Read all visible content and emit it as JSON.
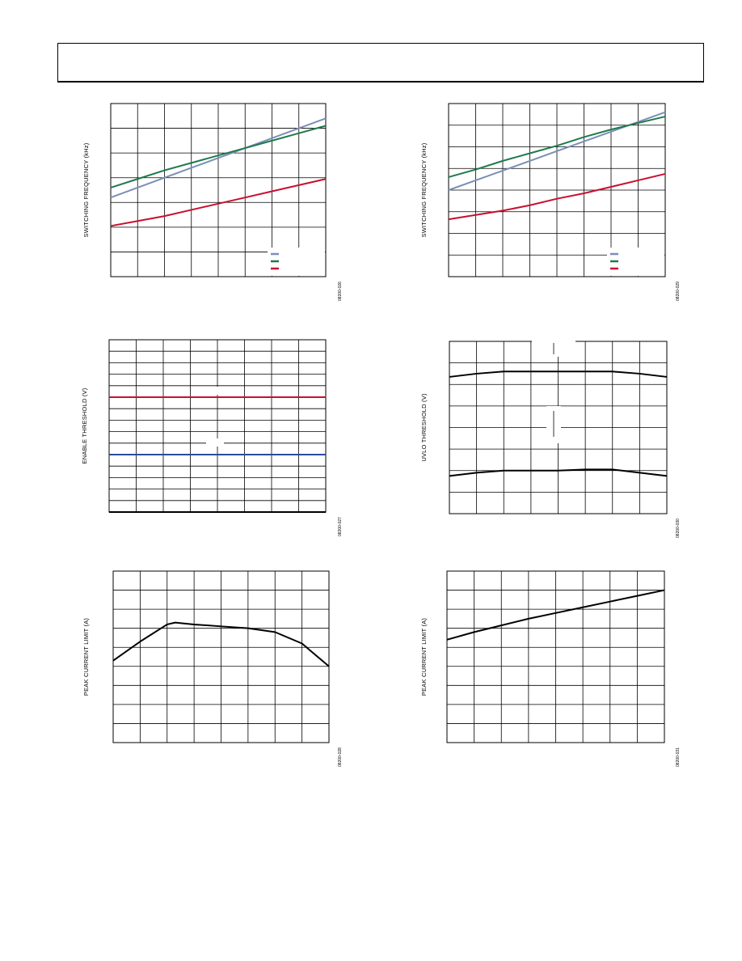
{
  "page": {
    "header": ""
  },
  "charts": [
    {
      "id": "c1",
      "ylabel": "SWITCHING FREQUENCY (kHz)",
      "fignum": "08200-026",
      "cols": 8,
      "rows": 7,
      "legend": true
    },
    {
      "id": "c2",
      "ylabel": "SWITCHING FREQUENCY (kHz)",
      "fignum": "08200-029",
      "cols": 8,
      "rows": 8,
      "legend": true
    },
    {
      "id": "c3",
      "ylabel": "ENABLE THRESHOLD (V)",
      "fignum": "08200-027",
      "cols": 8,
      "rows": 15,
      "legend": false
    },
    {
      "id": "c4",
      "ylabel": "UVLO THRESHOLD (V)",
      "fignum": "08200-030",
      "cols": 8,
      "rows": 8,
      "legend": false
    },
    {
      "id": "c5",
      "ylabel": "PEAK CURRENT LIMIT (A)",
      "fignum": "08200-028",
      "cols": 8,
      "rows": 9,
      "legend": false
    },
    {
      "id": "c6",
      "ylabel": "PEAK CURRENT LIMIT (A)",
      "fignum": "08200-031",
      "cols": 8,
      "rows": 9,
      "legend": false
    }
  ],
  "chart_data": [
    {
      "type": "line",
      "x": [
        0,
        1,
        2,
        3,
        4,
        5,
        6,
        7,
        8
      ],
      "xlim": [
        0,
        8
      ],
      "ylim": [
        0,
        7
      ],
      "xlabel": "",
      "ylabel": "SWITCHING FREQUENCY (kHz)",
      "title": "",
      "grid": true,
      "legend_location": "bottom-right",
      "series": [
        {
          "color": "#7b8fb6",
          "values": [
            3.2,
            3.6,
            4.0,
            4.4,
            4.8,
            5.2,
            5.6,
            6.0,
            6.4
          ]
        },
        {
          "color": "#1f7a4d",
          "values": [
            3.6,
            3.95,
            4.3,
            4.6,
            4.9,
            5.2,
            5.5,
            5.8,
            6.1
          ]
        },
        {
          "color": "#c8102e",
          "values": [
            2.05,
            2.25,
            2.45,
            2.7,
            2.95,
            3.2,
            3.45,
            3.7,
            3.95
          ]
        }
      ]
    },
    {
      "type": "line",
      "x": [
        0,
        1,
        2,
        3,
        4,
        5,
        6,
        7,
        8
      ],
      "xlim": [
        0,
        8
      ],
      "ylim": [
        0,
        8
      ],
      "xlabel": "",
      "ylabel": "SWITCHING FREQUENCY (kHz)",
      "title": "",
      "grid": true,
      "legend_location": "bottom-right",
      "series": [
        {
          "color": "#7b8fb6",
          "values": [
            4.0,
            4.45,
            4.9,
            5.35,
            5.8,
            6.25,
            6.7,
            7.15,
            7.6
          ]
        },
        {
          "color": "#1f7a4d",
          "values": [
            4.6,
            4.95,
            5.35,
            5.7,
            6.05,
            6.45,
            6.8,
            7.1,
            7.4
          ]
        },
        {
          "color": "#c8102e",
          "values": [
            2.65,
            2.85,
            3.05,
            3.3,
            3.6,
            3.85,
            4.15,
            4.45,
            4.75
          ]
        }
      ]
    },
    {
      "type": "line",
      "x": [
        0,
        8
      ],
      "xlim": [
        0,
        8
      ],
      "ylim": [
        0,
        15
      ],
      "xlabel": "",
      "ylabel": "ENABLE THRESHOLD (V)",
      "title": "",
      "grid": true,
      "legend_location": "none",
      "series": [
        {
          "color": "#c8102e",
          "values": [
            10,
            10
          ]
        },
        {
          "color": "#2a4b9b",
          "values": [
            5,
            5
          ]
        }
      ]
    },
    {
      "type": "line",
      "x": [
        0,
        1,
        2,
        3,
        4,
        5,
        6,
        7,
        8
      ],
      "xlim": [
        0,
        8
      ],
      "ylim": [
        0,
        8
      ],
      "xlabel": "",
      "ylabel": "UVLO THRESHOLD (V)",
      "title": "",
      "grid": true,
      "legend_location": "none",
      "series": [
        {
          "color": "#000000",
          "values": [
            6.35,
            6.5,
            6.6,
            6.6,
            6.6,
            6.6,
            6.6,
            6.5,
            6.35
          ]
        },
        {
          "color": "#000000",
          "values": [
            1.75,
            1.9,
            2.0,
            2.0,
            2.0,
            2.05,
            2.05,
            1.9,
            1.75
          ]
        }
      ]
    },
    {
      "type": "line",
      "x": [
        0,
        1,
        2,
        2.3,
        3,
        4,
        5,
        6,
        7,
        8
      ],
      "xlim": [
        0,
        8
      ],
      "ylim": [
        0,
        9
      ],
      "xlabel": "",
      "ylabel": "PEAK CURRENT LIMIT (A)",
      "title": "",
      "grid": true,
      "legend_location": "none",
      "series": [
        {
          "color": "#000000",
          "values": [
            4.3,
            5.3,
            6.2,
            6.3,
            6.2,
            6.1,
            6.0,
            5.8,
            5.2,
            4.0
          ]
        }
      ]
    },
    {
      "type": "line",
      "x": [
        0,
        1,
        2,
        3,
        4,
        5,
        6,
        7,
        8
      ],
      "xlim": [
        0,
        8
      ],
      "ylim": [
        0,
        9
      ],
      "xlabel": "",
      "ylabel": "PEAK CURRENT LIMIT (A)",
      "title": "",
      "grid": true,
      "legend_location": "none",
      "series": [
        {
          "color": "#000000",
          "values": [
            5.4,
            5.8,
            6.15,
            6.5,
            6.8,
            7.1,
            7.4,
            7.7,
            8.0
          ]
        }
      ]
    }
  ]
}
